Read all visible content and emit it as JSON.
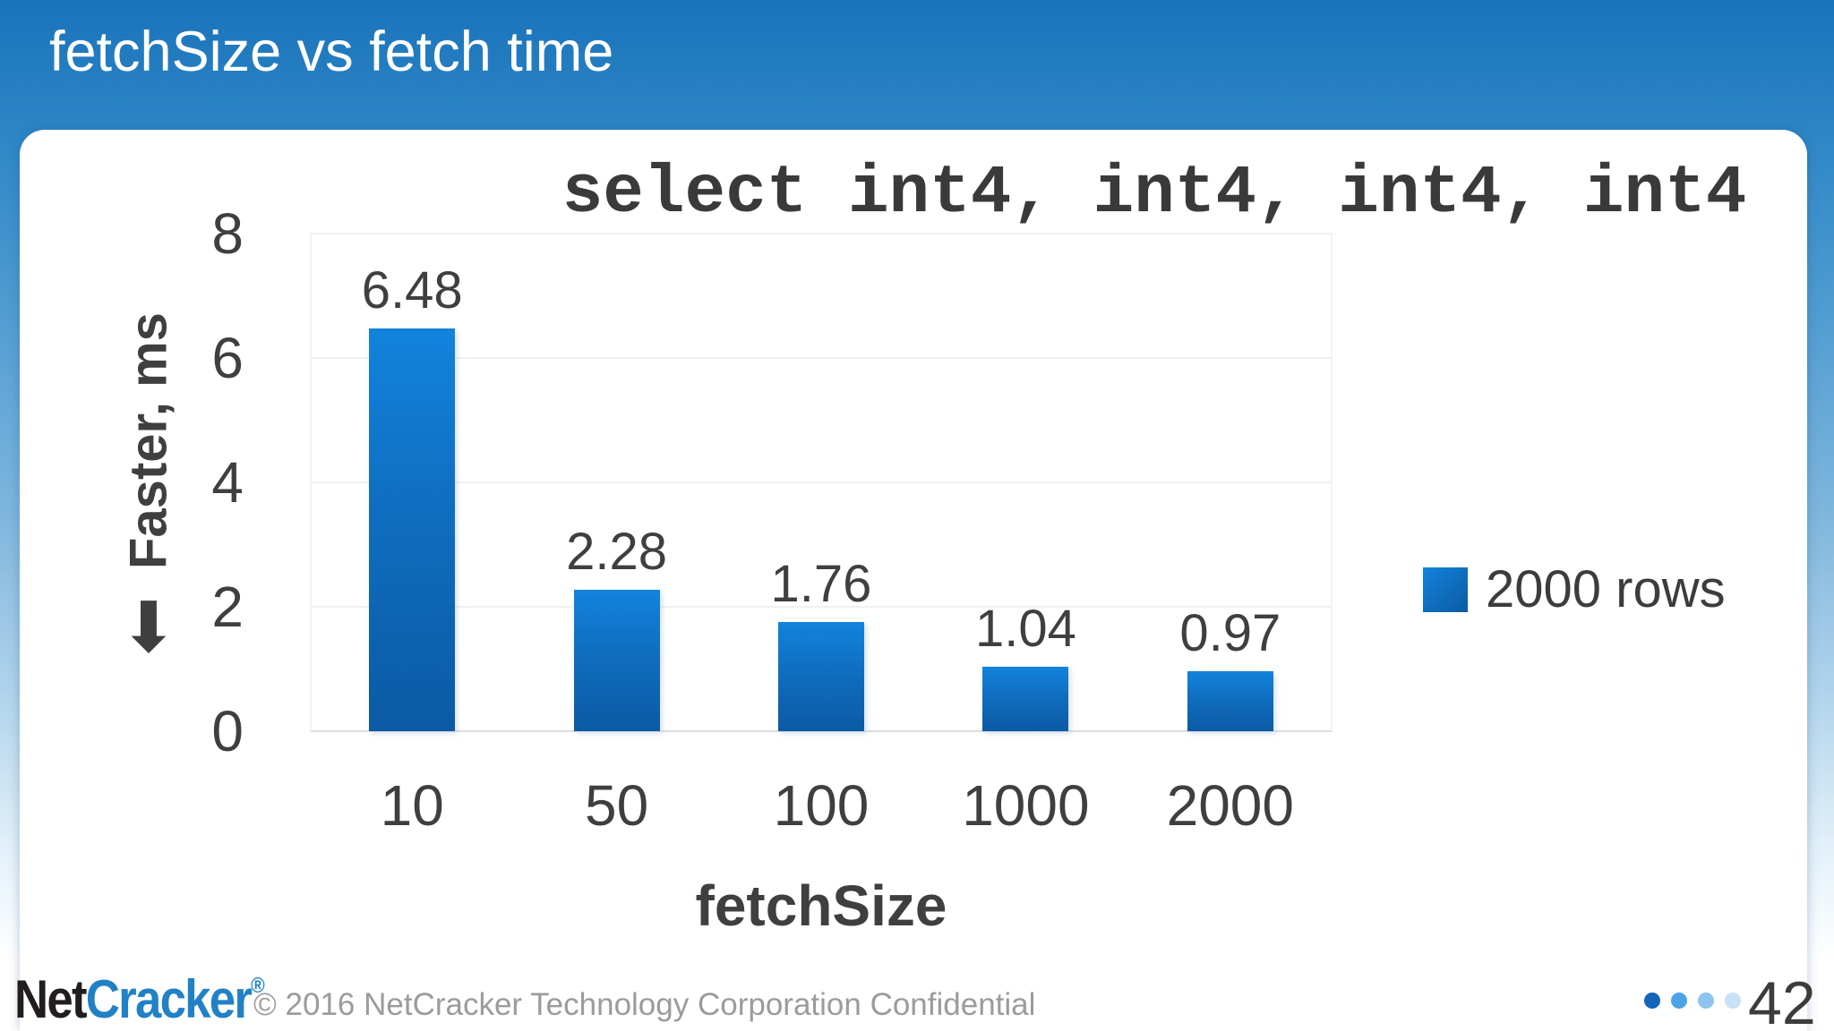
{
  "slide": {
    "title": "fetchSize vs fetch time"
  },
  "chart_data": {
    "type": "bar",
    "title": "select int4, int4, int4, int4",
    "categories": [
      "10",
      "50",
      "100",
      "1000",
      "2000"
    ],
    "series": [
      {
        "name": "2000 rows",
        "values": [
          6.48,
          2.28,
          1.76,
          1.04,
          0.97
        ],
        "labels": [
          "6.48",
          "2.28",
          "1.76",
          "1.04",
          "0.97"
        ]
      }
    ],
    "xlabel": "fetchSize",
    "ylabel": "Faster, ms",
    "ylabel_arrow": "⬇",
    "ylim": [
      0,
      8
    ],
    "yticks": [
      0,
      2,
      4,
      6,
      8
    ],
    "grid": "horizontal",
    "legend_position": "right",
    "colors": {
      "bar_top": "#1283dc",
      "bar_bottom": "#0c5aa4",
      "label_text": "#3f3f3f",
      "gridline": "#f0f0f0"
    }
  },
  "footer": {
    "logo_net": "Net",
    "logo_cracker": "Cracker",
    "logo_reg": "®",
    "copyright": "© 2016 NetCracker Technology Corporation Confidential",
    "pager_dots": [
      "#1565b8",
      "#4da3e8",
      "#8ec4ef",
      "#c7e1f6"
    ],
    "page_number": "42"
  }
}
